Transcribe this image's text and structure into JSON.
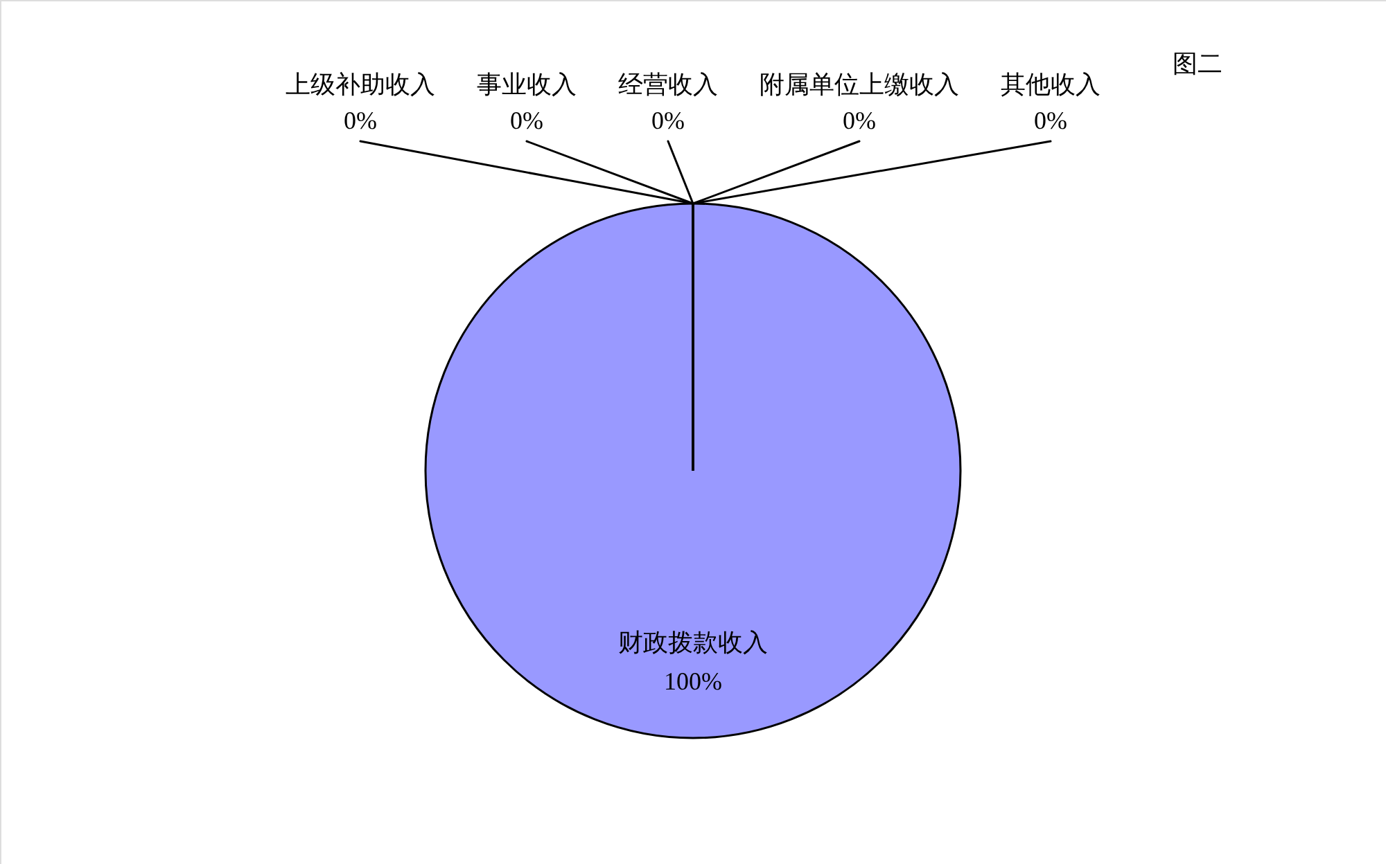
{
  "chart_data": {
    "type": "pie",
    "title": "图二",
    "categories": [
      "财政拨款收入",
      "上级补助收入",
      "事业收入",
      "经营收入",
      "附属单位上缴收入",
      "其他收入"
    ],
    "values": [
      100,
      0,
      0,
      0,
      0,
      0
    ],
    "value_labels": [
      "100%",
      "0%",
      "0%",
      "0%",
      "0%",
      "0%"
    ],
    "colors": [
      "#9999ff",
      "#993366",
      "#ffffcc",
      "#ccffff",
      "#660066",
      "#ff8080"
    ]
  }
}
